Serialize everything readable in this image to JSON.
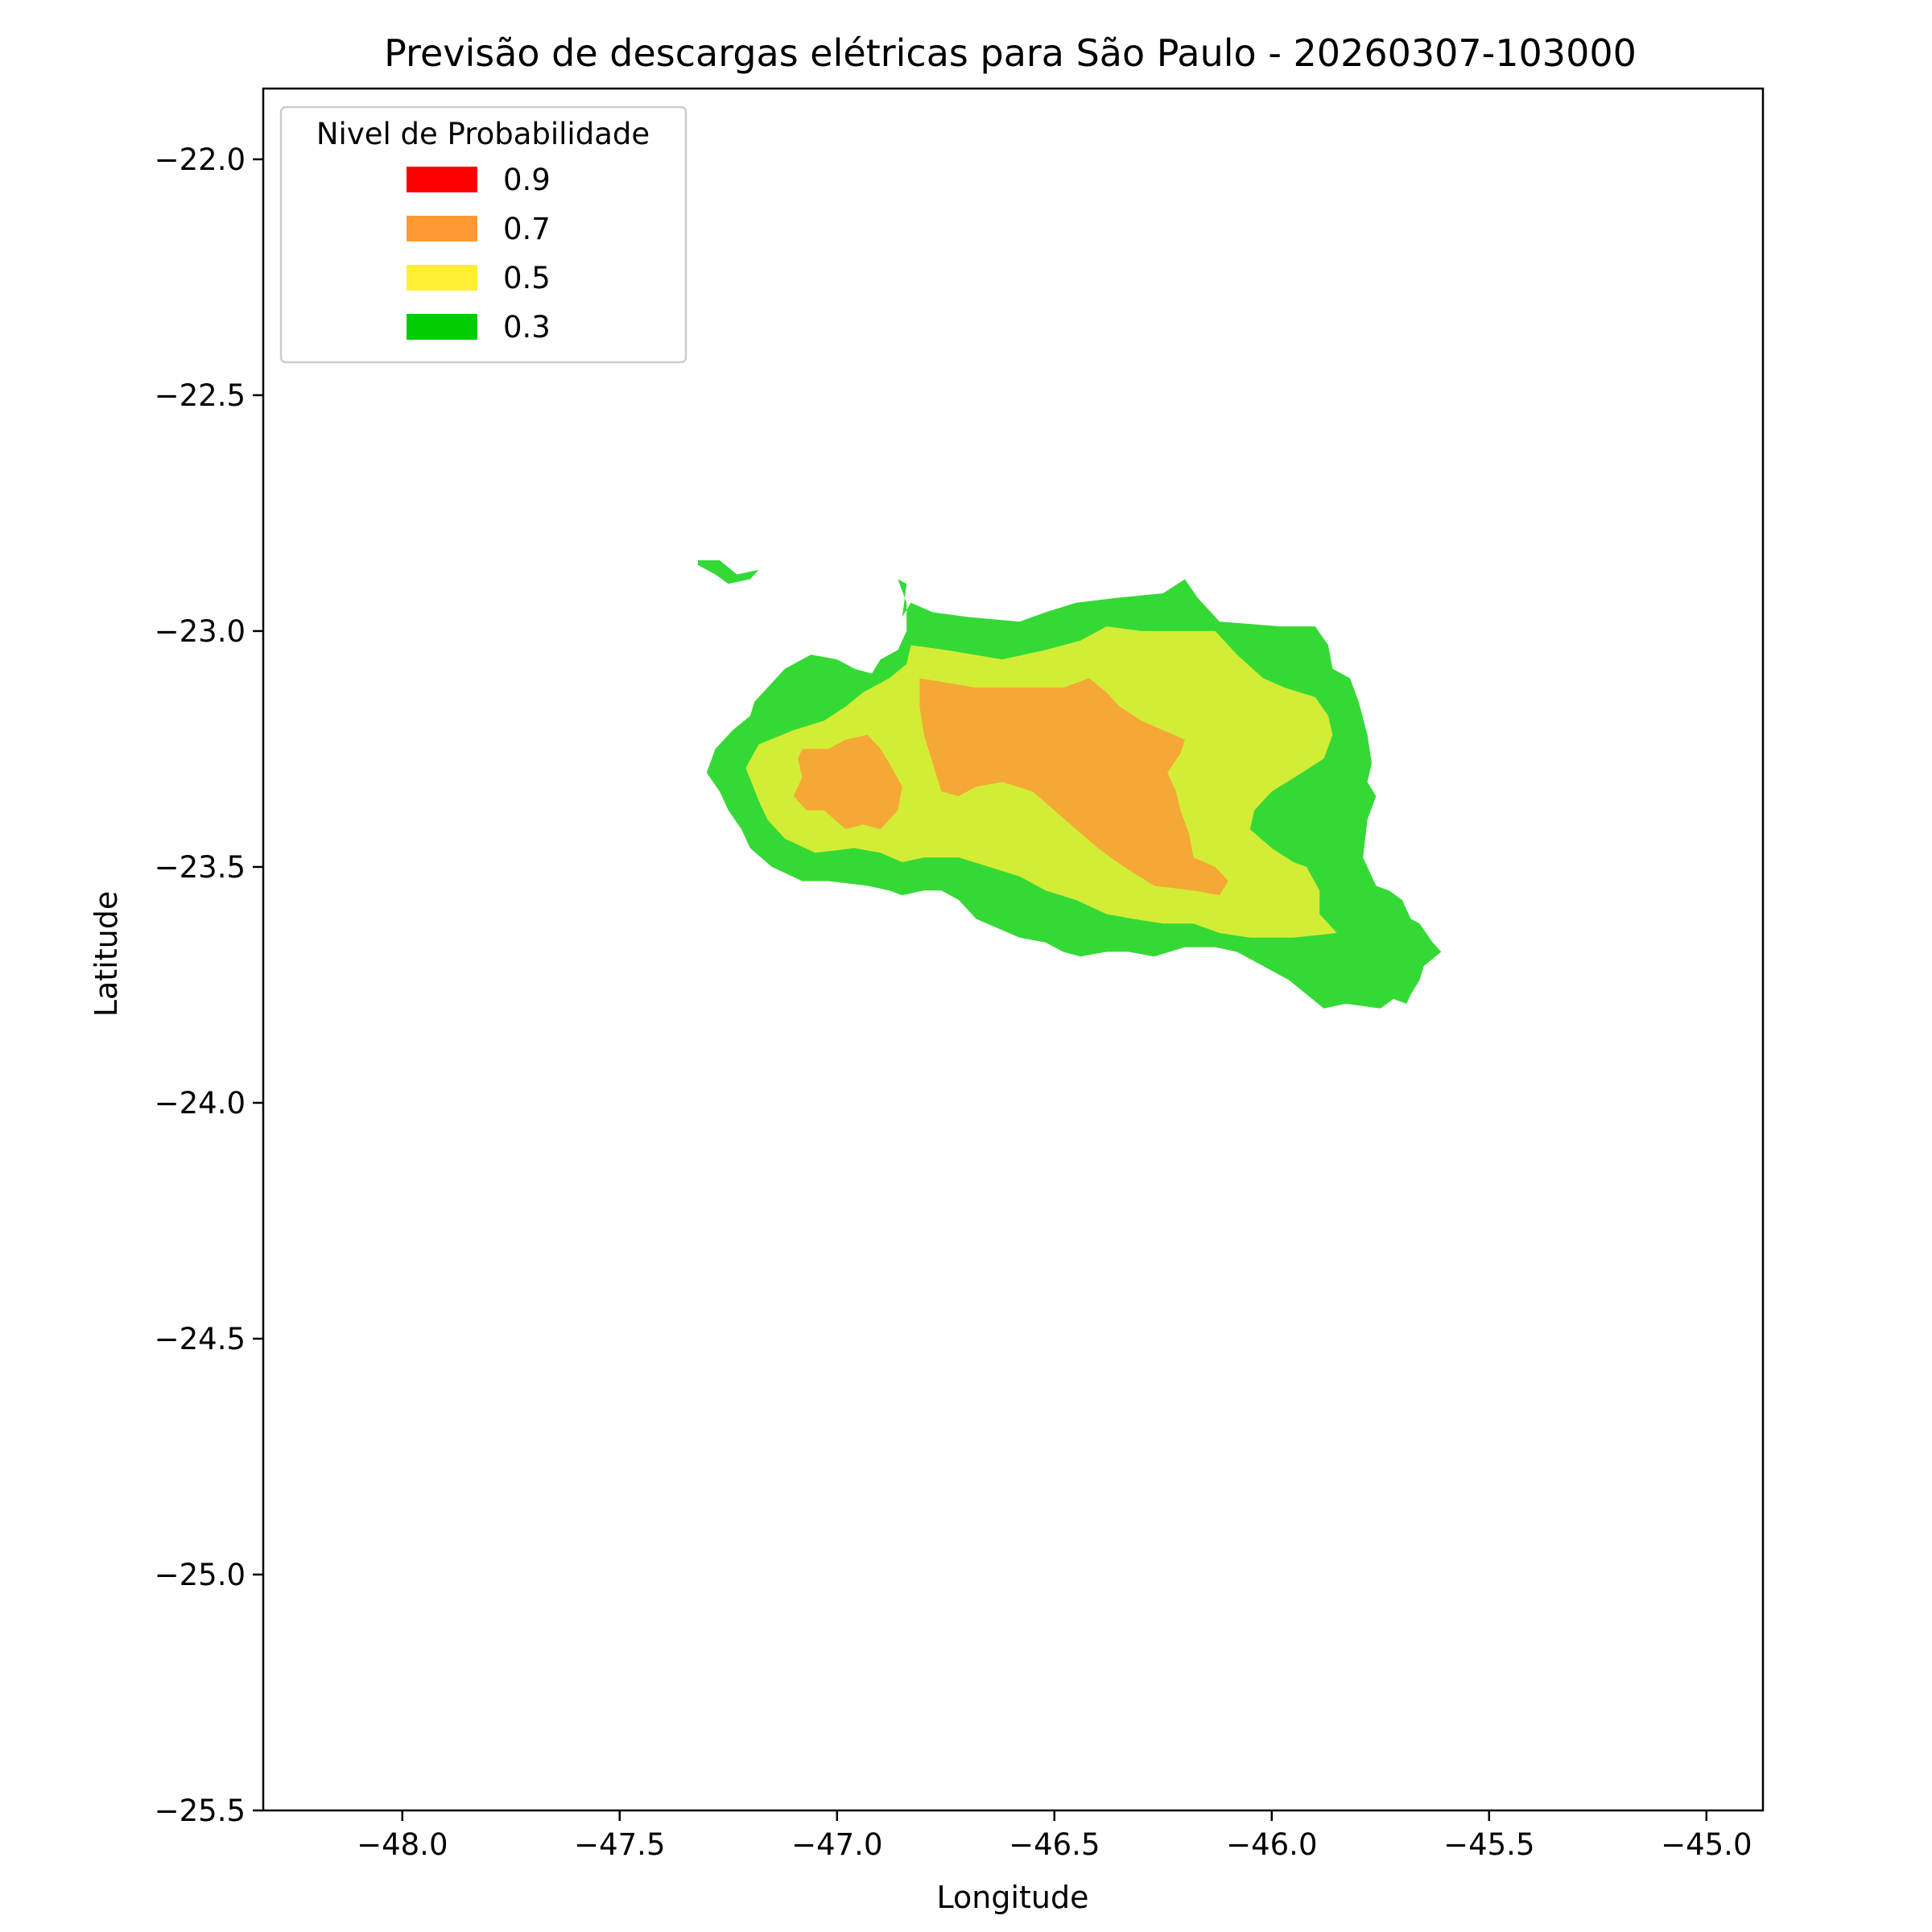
{
  "chart_data": {
    "type": "filled-contour map",
    "title": "Previsão de descargas elétricas para São Paulo - 20260307-103000",
    "xlabel": "Longitude",
    "ylabel": "Latitude",
    "xlim": [
      -48.32,
      -44.87
    ],
    "ylim": [
      -25.5,
      -21.85
    ],
    "x_ticks": [
      -48.0,
      -47.5,
      -47.0,
      -46.5,
      -46.0,
      -45.5,
      -45.0
    ],
    "x_tick_labels": [
      "−48.0",
      "−47.5",
      "−47.0",
      "−46.5",
      "−46.0",
      "−45.5",
      "−45.0"
    ],
    "y_ticks": [
      -22.0,
      -22.5,
      -23.0,
      -23.5,
      -24.0,
      -24.5,
      -25.0,
      -25.5
    ],
    "y_tick_labels": [
      "−22.0",
      "−22.5",
      "−23.0",
      "−23.5",
      "−24.0",
      "−24.5",
      "−25.0",
      "−25.5"
    ],
    "grid": false,
    "legend": {
      "title": "Nivel de Probabilidade",
      "placement": "upper-left",
      "entries": [
        {
          "label": "0.9",
          "color": "#ff0000"
        },
        {
          "label": "0.7",
          "color": "#ff9933"
        },
        {
          "label": "0.5",
          "color": "#ffee33"
        },
        {
          "label": "0.3",
          "color": "#00cc00"
        }
      ]
    },
    "regions": [
      {
        "level": "0.3",
        "color": "#35d935",
        "polygons": [
          [
            [
              -47.32,
              -22.85
            ],
            [
              -47.27,
              -22.85
            ],
            [
              -47.23,
              -22.88
            ],
            [
              -47.18,
              -22.87
            ],
            [
              -47.2,
              -22.89
            ],
            [
              -47.25,
              -22.9
            ],
            [
              -47.28,
              -22.88
            ],
            [
              -47.32,
              -22.86
            ]
          ],
          [
            [
              -46.86,
              -22.89
            ],
            [
              -46.84,
              -22.9
            ],
            [
              -46.85,
              -22.97
            ],
            [
              -46.83,
              -22.94
            ],
            [
              -46.78,
              -22.96
            ],
            [
              -46.7,
              -22.97
            ],
            [
              -46.58,
              -22.98
            ],
            [
              -46.52,
              -22.96
            ],
            [
              -46.45,
              -22.94
            ],
            [
              -46.36,
              -22.93
            ],
            [
              -46.25,
              -22.92
            ],
            [
              -46.2,
              -22.89
            ],
            [
              -46.17,
              -22.93
            ],
            [
              -46.12,
              -22.98
            ],
            [
              -45.98,
              -22.99
            ],
            [
              -45.9,
              -22.99
            ],
            [
              -45.87,
              -23.03
            ],
            [
              -45.86,
              -23.08
            ],
            [
              -45.82,
              -23.1
            ],
            [
              -45.8,
              -23.15
            ],
            [
              -45.78,
              -23.22
            ],
            [
              -45.77,
              -23.28
            ],
            [
              -45.78,
              -23.32
            ],
            [
              -45.76,
              -23.35
            ],
            [
              -45.78,
              -23.4
            ],
            [
              -45.79,
              -23.48
            ],
            [
              -45.76,
              -23.54
            ],
            [
              -45.73,
              -23.55
            ],
            [
              -45.7,
              -23.57
            ],
            [
              -45.68,
              -23.61
            ],
            [
              -45.66,
              -23.62
            ],
            [
              -45.63,
              -23.66
            ],
            [
              -45.61,
              -23.68
            ],
            [
              -45.65,
              -23.71
            ],
            [
              -45.66,
              -23.74
            ],
            [
              -45.68,
              -23.77
            ],
            [
              -45.69,
              -23.79
            ],
            [
              -45.72,
              -23.78
            ],
            [
              -45.75,
              -23.8
            ],
            [
              -45.83,
              -23.79
            ],
            [
              -45.88,
              -23.8
            ],
            [
              -45.92,
              -23.77
            ],
            [
              -45.96,
              -23.74
            ],
            [
              -46.02,
              -23.71
            ],
            [
              -46.08,
              -23.68
            ],
            [
              -46.13,
              -23.67
            ],
            [
              -46.2,
              -23.67
            ],
            [
              -46.27,
              -23.69
            ],
            [
              -46.33,
              -23.68
            ],
            [
              -46.38,
              -23.68
            ],
            [
              -46.44,
              -23.69
            ],
            [
              -46.48,
              -23.68
            ],
            [
              -46.52,
              -23.66
            ],
            [
              -46.58,
              -23.65
            ],
            [
              -46.63,
              -23.63
            ],
            [
              -46.68,
              -23.61
            ],
            [
              -46.72,
              -23.57
            ],
            [
              -46.76,
              -23.55
            ],
            [
              -46.8,
              -23.55
            ],
            [
              -46.85,
              -23.56
            ],
            [
              -46.88,
              -23.55
            ],
            [
              -46.93,
              -23.54
            ],
            [
              -47.02,
              -23.53
            ],
            [
              -47.08,
              -23.53
            ],
            [
              -47.15,
              -23.5
            ],
            [
              -47.2,
              -23.46
            ],
            [
              -47.22,
              -23.42
            ],
            [
              -47.25,
              -23.38
            ],
            [
              -47.27,
              -23.34
            ],
            [
              -47.3,
              -23.3
            ],
            [
              -47.28,
              -23.25
            ],
            [
              -47.24,
              -23.21
            ],
            [
              -47.2,
              -23.18
            ],
            [
              -47.19,
              -23.15
            ],
            [
              -47.16,
              -23.12
            ],
            [
              -47.12,
              -23.08
            ],
            [
              -47.06,
              -23.05
            ],
            [
              -47.0,
              -23.06
            ],
            [
              -46.96,
              -23.08
            ],
            [
              -46.92,
              -23.09
            ],
            [
              -46.9,
              -23.06
            ],
            [
              -46.86,
              -23.04
            ],
            [
              -46.84,
              -23.0
            ],
            [
              -46.84,
              -22.94
            ]
          ]
        ]
      },
      {
        "level": "0.5",
        "color": "#d3ed36",
        "polygons": [
          [
            [
              -46.83,
              -23.03
            ],
            [
              -46.75,
              -23.04
            ],
            [
              -46.62,
              -23.06
            ],
            [
              -46.52,
              -23.04
            ],
            [
              -46.44,
              -23.02
            ],
            [
              -46.38,
              -22.99
            ],
            [
              -46.3,
              -23.0
            ],
            [
              -46.2,
              -23.0
            ],
            [
              -46.13,
              -23.0
            ],
            [
              -46.08,
              -23.05
            ],
            [
              -46.02,
              -23.1
            ],
            [
              -45.97,
              -23.12
            ],
            [
              -45.9,
              -23.14
            ],
            [
              -45.87,
              -23.18
            ],
            [
              -45.86,
              -23.22
            ],
            [
              -45.88,
              -23.27
            ],
            [
              -45.93,
              -23.3
            ],
            [
              -46.0,
              -23.34
            ],
            [
              -46.04,
              -23.38
            ],
            [
              -46.05,
              -23.42
            ],
            [
              -46.0,
              -23.46
            ],
            [
              -45.95,
              -23.49
            ],
            [
              -45.92,
              -23.5
            ],
            [
              -45.89,
              -23.55
            ],
            [
              -45.89,
              -23.6
            ],
            [
              -45.85,
              -23.64
            ],
            [
              -45.95,
              -23.65
            ],
            [
              -46.05,
              -23.65
            ],
            [
              -46.12,
              -23.64
            ],
            [
              -46.18,
              -23.62
            ],
            [
              -46.25,
              -23.62
            ],
            [
              -46.32,
              -23.61
            ],
            [
              -46.38,
              -23.6
            ],
            [
              -46.45,
              -23.57
            ],
            [
              -46.52,
              -23.55
            ],
            [
              -46.58,
              -23.52
            ],
            [
              -46.65,
              -23.5
            ],
            [
              -46.72,
              -23.48
            ],
            [
              -46.8,
              -23.48
            ],
            [
              -46.85,
              -23.49
            ],
            [
              -46.9,
              -23.47
            ],
            [
              -46.96,
              -23.46
            ],
            [
              -47.05,
              -23.47
            ],
            [
              -47.12,
              -23.44
            ],
            [
              -47.16,
              -23.4
            ],
            [
              -47.18,
              -23.36
            ],
            [
              -47.21,
              -23.29
            ],
            [
              -47.18,
              -23.24
            ],
            [
              -47.1,
              -23.21
            ],
            [
              -47.03,
              -23.19
            ],
            [
              -46.98,
              -23.16
            ],
            [
              -46.94,
              -23.13
            ],
            [
              -46.88,
              -23.1
            ],
            [
              -46.84,
              -23.07
            ]
          ]
        ]
      },
      {
        "level": "0.7",
        "color": "#f5a835",
        "polygons": [
          [
            [
              -47.08,
              -23.25
            ],
            [
              -47.02,
              -23.25
            ],
            [
              -46.98,
              -23.23
            ],
            [
              -46.93,
              -23.22
            ],
            [
              -46.9,
              -23.25
            ],
            [
              -46.88,
              -23.28
            ],
            [
              -46.85,
              -23.33
            ],
            [
              -46.86,
              -23.38
            ],
            [
              -46.9,
              -23.42
            ],
            [
              -46.94,
              -23.41
            ],
            [
              -46.98,
              -23.42
            ],
            [
              -47.03,
              -23.38
            ],
            [
              -47.07,
              -23.38
            ],
            [
              -47.1,
              -23.35
            ],
            [
              -47.08,
              -23.31
            ],
            [
              -47.09,
              -23.27
            ]
          ],
          [
            [
              -46.81,
              -23.1
            ],
            [
              -46.68,
              -23.12
            ],
            [
              -46.58,
              -23.12
            ],
            [
              -46.48,
              -23.12
            ],
            [
              -46.42,
              -23.1
            ],
            [
              -46.38,
              -23.13
            ],
            [
              -46.35,
              -23.16
            ],
            [
              -46.3,
              -23.19
            ],
            [
              -46.25,
              -23.21
            ],
            [
              -46.2,
              -23.23
            ],
            [
              -46.21,
              -23.26
            ],
            [
              -46.24,
              -23.3
            ],
            [
              -46.22,
              -23.34
            ],
            [
              -46.21,
              -23.38
            ],
            [
              -46.19,
              -23.43
            ],
            [
              -46.18,
              -23.48
            ],
            [
              -46.13,
              -23.5
            ],
            [
              -46.1,
              -23.53
            ],
            [
              -46.12,
              -23.56
            ],
            [
              -46.18,
              -23.55
            ],
            [
              -46.27,
              -23.54
            ],
            [
              -46.34,
              -23.5
            ],
            [
              -46.4,
              -23.46
            ],
            [
              -46.45,
              -23.42
            ],
            [
              -46.5,
              -23.38
            ],
            [
              -46.55,
              -23.34
            ],
            [
              -46.62,
              -23.32
            ],
            [
              -46.68,
              -23.33
            ],
            [
              -46.72,
              -23.35
            ],
            [
              -46.76,
              -23.34
            ],
            [
              -46.78,
              -23.28
            ],
            [
              -46.8,
              -23.22
            ],
            [
              -46.81,
              -23.16
            ]
          ]
        ]
      }
    ]
  }
}
